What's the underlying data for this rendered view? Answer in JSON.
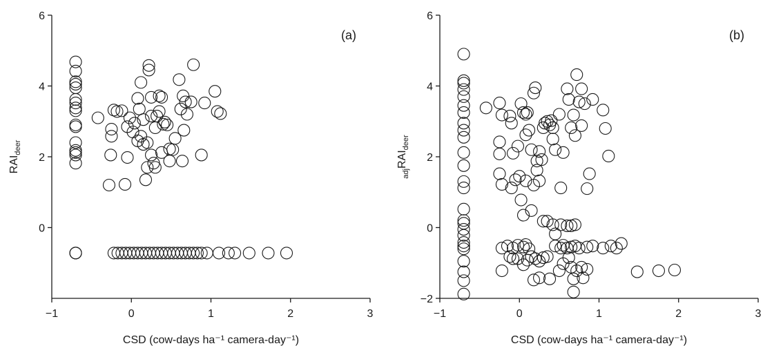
{
  "chart_data": [
    {
      "type": "scatter",
      "panel_label": "(a)",
      "xlabel": "CSD (cow-days ha⁻¹ camera-day⁻¹)",
      "ylabel_prefix": "",
      "ylabel_main": "RAI",
      "ylabel_sub": "deer",
      "xlim": [
        -1,
        3
      ],
      "ylim": [
        -2,
        6
      ],
      "xticks": [
        "−1",
        "0",
        "1",
        "2",
        "3"
      ],
      "xtick_values": [
        -1,
        0,
        1,
        2,
        3
      ],
      "yticks": [
        "0",
        "2",
        "4",
        "6"
      ],
      "ytick_values": [
        0,
        2,
        4,
        6
      ],
      "grid": false,
      "points": [
        [
          -0.7,
          4.68
        ],
        [
          -0.7,
          4.42
        ],
        [
          -0.7,
          4.12
        ],
        [
          -0.7,
          4.05
        ],
        [
          -0.7,
          3.95
        ],
        [
          -0.7,
          3.62
        ],
        [
          -0.7,
          3.52
        ],
        [
          -0.7,
          3.38
        ],
        [
          -0.7,
          3.3
        ],
        [
          -0.7,
          2.9
        ],
        [
          -0.7,
          2.85
        ],
        [
          -0.7,
          2.4
        ],
        [
          -0.7,
          2.18
        ],
        [
          -0.7,
          2.12
        ],
        [
          -0.7,
          2.05
        ],
        [
          -0.7,
          1.82
        ],
        [
          -0.7,
          -0.72
        ],
        [
          -0.7,
          -0.72
        ],
        [
          -0.7,
          -0.72
        ],
        [
          -0.42,
          3.1
        ],
        [
          -0.28,
          1.2
        ],
        [
          -0.26,
          2.05
        ],
        [
          -0.25,
          2.58
        ],
        [
          -0.25,
          2.78
        ],
        [
          -0.22,
          3.32
        ],
        [
          -0.18,
          3.28
        ],
        [
          -0.12,
          3.3
        ],
        [
          -0.08,
          1.22
        ],
        [
          -0.05,
          1.98
        ],
        [
          -0.05,
          2.85
        ],
        [
          -0.02,
          3.1
        ],
        [
          0.02,
          2.7
        ],
        [
          0.04,
          2.95
        ],
        [
          0.08,
          2.45
        ],
        [
          0.08,
          3.65
        ],
        [
          0.1,
          3.35
        ],
        [
          0.12,
          4.1
        ],
        [
          0.12,
          2.58
        ],
        [
          0.15,
          3.05
        ],
        [
          0.15,
          2.35
        ],
        [
          0.18,
          1.35
        ],
        [
          0.2,
          1.7
        ],
        [
          0.2,
          2.4
        ],
        [
          0.22,
          4.58
        ],
        [
          0.22,
          4.45
        ],
        [
          0.25,
          3.68
        ],
        [
          0.25,
          3.15
        ],
        [
          0.25,
          2.05
        ],
        [
          0.28,
          1.82
        ],
        [
          0.3,
          2.82
        ],
        [
          0.3,
          1.7
        ],
        [
          0.32,
          3.15
        ],
        [
          0.35,
          3.28
        ],
        [
          0.35,
          3.72
        ],
        [
          0.38,
          3.68
        ],
        [
          0.38,
          2.12
        ],
        [
          0.4,
          2.92
        ],
        [
          0.42,
          2.98
        ],
        [
          0.45,
          2.9
        ],
        [
          0.48,
          2.22
        ],
        [
          0.48,
          1.88
        ],
        [
          0.52,
          2.2
        ],
        [
          0.55,
          2.52
        ],
        [
          0.6,
          4.18
        ],
        [
          0.62,
          3.35
        ],
        [
          0.64,
          1.88
        ],
        [
          0.65,
          3.72
        ],
        [
          0.66,
          2.75
        ],
        [
          0.68,
          3.55
        ],
        [
          0.7,
          3.2
        ],
        [
          0.75,
          3.55
        ],
        [
          0.78,
          4.6
        ],
        [
          0.88,
          2.05
        ],
        [
          0.92,
          3.52
        ],
        [
          1.05,
          3.85
        ],
        [
          1.08,
          3.28
        ],
        [
          1.12,
          3.22
        ],
        [
          -0.22,
          -0.72
        ],
        [
          -0.17,
          -0.72
        ],
        [
          -0.12,
          -0.72
        ],
        [
          -0.07,
          -0.72
        ],
        [
          -0.02,
          -0.72
        ],
        [
          0.03,
          -0.72
        ],
        [
          0.08,
          -0.72
        ],
        [
          0.13,
          -0.72
        ],
        [
          0.18,
          -0.72
        ],
        [
          0.23,
          -0.72
        ],
        [
          0.28,
          -0.72
        ],
        [
          0.33,
          -0.72
        ],
        [
          0.38,
          -0.72
        ],
        [
          0.43,
          -0.72
        ],
        [
          0.48,
          -0.72
        ],
        [
          0.53,
          -0.72
        ],
        [
          0.58,
          -0.72
        ],
        [
          0.63,
          -0.72
        ],
        [
          0.68,
          -0.72
        ],
        [
          0.73,
          -0.72
        ],
        [
          0.78,
          -0.72
        ],
        [
          0.83,
          -0.72
        ],
        [
          0.88,
          -0.72
        ],
        [
          0.95,
          -0.72
        ],
        [
          1.1,
          -0.72
        ],
        [
          1.22,
          -0.72
        ],
        [
          1.3,
          -0.72
        ],
        [
          1.48,
          -0.72
        ],
        [
          1.72,
          -0.72
        ],
        [
          1.95,
          -0.72
        ]
      ]
    },
    {
      "type": "scatter",
      "panel_label": "(b)",
      "xlabel": "CSD (cow-days ha⁻¹ camera-day⁻¹)",
      "ylabel_prefix": "adj",
      "ylabel_main": "RAI",
      "ylabel_sub": "deer",
      "xlim": [
        -1,
        3
      ],
      "ylim": [
        -2,
        6
      ],
      "xticks": [
        "−1",
        "0",
        "1",
        "2",
        "3"
      ],
      "xtick_values": [
        -1,
        0,
        1,
        2,
        3
      ],
      "yticks": [
        "−2",
        "0",
        "2",
        "4",
        "6"
      ],
      "ytick_values": [
        -2,
        0,
        2,
        4,
        6
      ],
      "grid": false,
      "points": [
        [
          -0.7,
          4.9
        ],
        [
          -0.7,
          4.15
        ],
        [
          -0.7,
          4.08
        ],
        [
          -0.7,
          3.9
        ],
        [
          -0.7,
          3.7
        ],
        [
          -0.7,
          3.45
        ],
        [
          -0.7,
          3.25
        ],
        [
          -0.7,
          2.95
        ],
        [
          -0.7,
          2.75
        ],
        [
          -0.7,
          2.55
        ],
        [
          -0.7,
          2.12
        ],
        [
          -0.7,
          1.75
        ],
        [
          -0.7,
          1.3
        ],
        [
          -0.7,
          1.12
        ],
        [
          -0.7,
          0.52
        ],
        [
          -0.7,
          0.2
        ],
        [
          -0.7,
          0.12
        ],
        [
          -0.7,
          -0.05
        ],
        [
          -0.7,
          -0.22
        ],
        [
          -0.7,
          -0.42
        ],
        [
          -0.7,
          -0.52
        ],
        [
          -0.7,
          -0.6
        ],
        [
          -0.7,
          -0.95
        ],
        [
          -0.7,
          -1.25
        ],
        [
          -0.7,
          -1.5
        ],
        [
          -0.7,
          -1.88
        ],
        [
          -0.42,
          3.38
        ],
        [
          -0.25,
          3.52
        ],
        [
          -0.22,
          3.18
        ],
        [
          -0.25,
          2.42
        ],
        [
          -0.25,
          2.08
        ],
        [
          -0.25,
          1.52
        ],
        [
          -0.22,
          1.22
        ],
        [
          -0.12,
          3.15
        ],
        [
          -0.1,
          2.95
        ],
        [
          -0.08,
          2.1
        ],
        [
          -0.05,
          1.35
        ],
        [
          -0.02,
          2.3
        ],
        [
          0.02,
          3.5
        ],
        [
          0.05,
          3.25
        ],
        [
          0.08,
          3.2
        ],
        [
          0.08,
          2.62
        ],
        [
          0.1,
          3.25
        ],
        [
          0.12,
          2.75
        ],
        [
          0.15,
          2.2
        ],
        [
          0.18,
          3.8
        ],
        [
          0.2,
          3.95
        ],
        [
          0.22,
          1.88
        ],
        [
          0.22,
          1.62
        ],
        [
          0.25,
          2.15
        ],
        [
          0.28,
          1.92
        ],
        [
          0.3,
          2.82
        ],
        [
          0.32,
          2.95
        ],
        [
          0.35,
          3.0
        ],
        [
          0.38,
          2.9
        ],
        [
          0.4,
          3.02
        ],
        [
          0.42,
          2.82
        ],
        [
          0.42,
          2.5
        ],
        [
          0.45,
          2.2
        ],
        [
          0.5,
          3.2
        ],
        [
          0.55,
          2.12
        ],
        [
          0.6,
          3.92
        ],
        [
          0.62,
          3.62
        ],
        [
          0.65,
          2.82
        ],
        [
          0.68,
          3.18
        ],
        [
          0.7,
          2.6
        ],
        [
          0.72,
          4.32
        ],
        [
          0.75,
          3.55
        ],
        [
          0.78,
          3.92
        ],
        [
          0.78,
          2.88
        ],
        [
          0.82,
          3.5
        ],
        [
          0.88,
          1.52
        ],
        [
          0.92,
          3.62
        ],
        [
          1.05,
          3.32
        ],
        [
          1.08,
          2.8
        ],
        [
          1.12,
          2.02
        ],
        [
          -0.1,
          1.12
        ],
        [
          0.0,
          1.45
        ],
        [
          0.02,
          0.78
        ],
        [
          0.08,
          1.32
        ],
        [
          0.15,
          0.48
        ],
        [
          0.18,
          1.2
        ],
        [
          0.25,
          1.32
        ],
        [
          0.3,
          0.18
        ],
        [
          0.05,
          0.35
        ],
        [
          0.35,
          0.18
        ],
        [
          0.42,
          0.08
        ],
        [
          0.45,
          -0.18
        ],
        [
          0.52,
          0.08
        ],
        [
          0.6,
          0.05
        ],
        [
          0.65,
          0.05
        ],
        [
          0.7,
          0.08
        ],
        [
          0.52,
          1.12
        ],
        [
          0.85,
          1.1
        ],
        [
          -0.22,
          -0.58
        ],
        [
          -0.15,
          -0.52
        ],
        [
          -0.08,
          -0.58
        ],
        [
          -0.02,
          -0.5
        ],
        [
          0.05,
          -0.55
        ],
        [
          0.08,
          -0.48
        ],
        [
          0.12,
          -0.6
        ],
        [
          0.45,
          -0.52
        ],
        [
          0.52,
          -0.58
        ],
        [
          0.55,
          -0.5
        ],
        [
          0.6,
          -0.58
        ],
        [
          0.65,
          -0.55
        ],
        [
          0.7,
          -0.52
        ],
        [
          0.75,
          -0.58
        ],
        [
          0.85,
          -0.55
        ],
        [
          0.92,
          -0.52
        ],
        [
          1.05,
          -0.58
        ],
        [
          1.15,
          -0.52
        ],
        [
          1.22,
          -0.58
        ],
        [
          1.28,
          -0.45
        ],
        [
          -0.22,
          -1.22
        ],
        [
          -0.12,
          -0.82
        ],
        [
          -0.08,
          -0.88
        ],
        [
          -0.02,
          -0.88
        ],
        [
          0.05,
          -1.05
        ],
        [
          0.1,
          -0.92
        ],
        [
          0.15,
          -0.82
        ],
        [
          0.2,
          -0.88
        ],
        [
          0.25,
          -0.95
        ],
        [
          0.3,
          -0.85
        ],
        [
          0.35,
          -0.82
        ],
        [
          0.38,
          -1.45
        ],
        [
          0.18,
          -1.48
        ],
        [
          0.25,
          -1.42
        ],
        [
          0.5,
          -1.22
        ],
        [
          0.55,
          -1.02
        ],
        [
          0.62,
          -0.85
        ],
        [
          0.65,
          -1.12
        ],
        [
          0.68,
          -1.45
        ],
        [
          0.68,
          -1.82
        ],
        [
          0.72,
          -1.22
        ],
        [
          0.78,
          -1.12
        ],
        [
          0.8,
          -1.42
        ],
        [
          0.85,
          -1.18
        ],
        [
          1.48,
          -1.25
        ],
        [
          1.75,
          -1.22
        ],
        [
          1.95,
          -1.2
        ]
      ]
    }
  ]
}
